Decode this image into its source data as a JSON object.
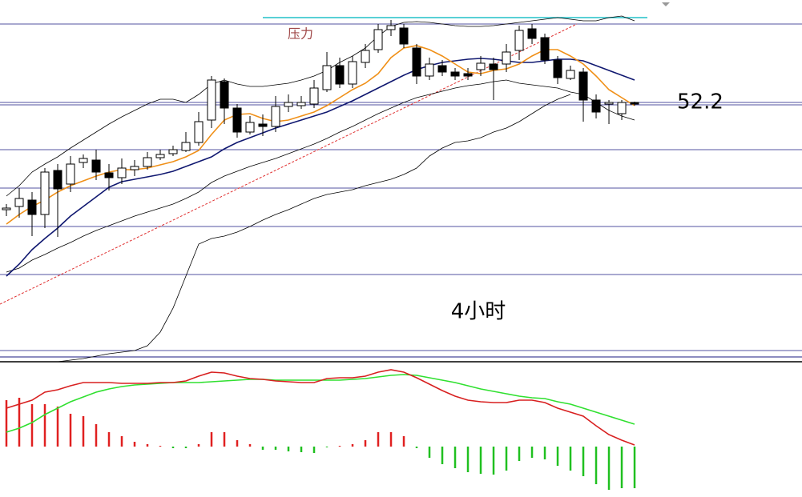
{
  "chart_data": [
    {
      "type": "candlestick",
      "xlim": [
        -0.5,
        62.06
      ],
      "ylim": [
        19.5,
        65
      ],
      "up_color": "#ffffff",
      "down_color": "#000000",
      "edge_color": "#000000",
      "open": [
        38.8,
        39.2,
        40.0,
        38.2,
        43.7,
        42.0,
        44.7,
        45.0,
        43.4,
        42.8,
        43.8,
        44.2,
        45.3,
        45.8,
        46.2,
        47.2,
        50.0,
        54.8,
        51.5,
        48.5,
        49.5,
        49.2,
        51.7,
        51.8,
        52.0,
        53.8,
        56.8,
        54.5,
        57.2,
        58.8,
        61.3,
        61.5,
        59.0,
        55.5,
        56.8,
        56.0,
        55.8,
        56.3,
        57.0,
        57.0,
        58.7,
        61.4,
        60.3,
        57.5,
        55.2,
        56.0,
        52.5,
        52.0,
        50.8,
        52.2
      ],
      "high": [
        39.5,
        41.5,
        41.0,
        44.0,
        44.5,
        45.5,
        45.7,
        46.3,
        44.5,
        45.2,
        45.0,
        46.0,
        46.3,
        46.8,
        48.5,
        51.0,
        55.5,
        55.2,
        52.0,
        50.5,
        50.7,
        53.0,
        53.2,
        53.0,
        55.0,
        58.5,
        57.8,
        58.0,
        59.5,
        62.0,
        62.5,
        62.0,
        59.5,
        57.8,
        57.5,
        56.5,
        56.5,
        58.0,
        57.8,
        59.5,
        61.8,
        62.0,
        60.8,
        58.0,
        56.8,
        56.5,
        53.2,
        52.5,
        52.5,
        52.3
      ],
      "low": [
        38.0,
        37.8,
        35.5,
        36.5,
        35.4,
        41.0,
        44.0,
        42.5,
        41.2,
        42.0,
        43.0,
        43.8,
        45.0,
        45.5,
        46.0,
        46.8,
        49.0,
        49.5,
        47.8,
        48.2,
        48.0,
        48.5,
        51.0,
        51.4,
        51.5,
        53.5,
        54.0,
        54.0,
        56.5,
        58.4,
        60.5,
        59.0,
        54.5,
        55.0,
        55.5,
        55.0,
        55.0,
        55.5,
        52.5,
        56.0,
        57.5,
        59.5,
        57.0,
        54.5,
        55.0,
        49.8,
        50.2,
        49.5,
        50.0,
        51.8
      ],
      "close": [
        39.0,
        40.2,
        38.2,
        43.5,
        41.4,
        44.5,
        45.2,
        43.5,
        42.8,
        44.0,
        44.2,
        45.3,
        45.7,
        46.3,
        47.2,
        49.8,
        55.0,
        51.5,
        48.5,
        49.7,
        49.2,
        51.7,
        52.2,
        52.2,
        54.0,
        56.8,
        54.5,
        57.3,
        58.7,
        61.3,
        61.8,
        59.5,
        55.5,
        57.0,
        56.0,
        55.5,
        55.5,
        57.1,
        56.3,
        58.5,
        61.2,
        60.2,
        57.5,
        55.3,
        56.2,
        52.5,
        51.0,
        52.2,
        52.2,
        52.0
      ],
      "lines": [
        {
          "color": "#000000",
          "width": 0.8,
          "values": [
            40.5,
            41.8,
            43.5,
            44.5,
            45.4,
            46.5,
            47.5,
            48.5,
            49.5,
            50.4,
            51.2,
            52.0,
            52.6,
            52.6,
            52.2,
            53.2,
            54.5,
            55.0,
            54.5,
            54.2,
            54.2,
            54.4,
            54.6,
            55.0,
            55.5,
            56.2,
            57.2,
            58.0,
            59.0,
            60.5,
            61.7,
            62.2,
            62.3,
            62.2,
            62.0,
            61.8,
            61.7,
            61.7,
            61.8,
            62.0,
            62.2,
            62.4,
            62.6,
            62.8,
            62.6,
            62.4,
            62.4,
            62.8,
            63.0,
            62.4
          ]
        },
        {
          "color": "#000000",
          "width": 0.8,
          "values": [
            31.0,
            31.5,
            32.5,
            33.2,
            34.0,
            34.7,
            35.5,
            36.2,
            36.8,
            37.4,
            38.0,
            38.5,
            39.0,
            39.5,
            40.2,
            41.0,
            42.2,
            43.0,
            43.6,
            44.2,
            44.7,
            45.2,
            45.8,
            46.4,
            47.0,
            47.7,
            48.5,
            49.2,
            50.0,
            50.8,
            51.5,
            52.2,
            52.8,
            53.2,
            53.6,
            54.0,
            54.3,
            54.5,
            54.8,
            55.0,
            54.6,
            54.4,
            54.2,
            54.0,
            53.5,
            53.2,
            52.2,
            51.2,
            50.5,
            50.0
          ]
        },
        {
          "color": "#000000",
          "width": 0.8,
          "values": [
            null,
            null,
            null,
            null,
            19.8,
            20.0,
            20.2,
            20.5,
            20.8,
            21.0,
            21.2,
            21.8,
            23.5,
            26.5,
            30.5,
            34.5,
            35.2,
            35.5,
            36.0,
            36.7,
            37.5,
            38.2,
            38.8,
            39.5,
            40.2,
            40.7,
            41.0,
            41.3,
            41.8,
            42.2,
            42.6,
            43.2,
            44.0,
            45.5,
            46.5,
            47.2,
            47.4,
            47.8,
            48.5,
            49.0,
            49.8,
            50.8,
            51.8,
            52.6,
            53.2,
            null,
            null,
            null,
            null,
            null
          ]
        },
        {
          "color": "#101870",
          "width": 1.6,
          "values": [
            30.5,
            32.0,
            33.8,
            35.2,
            36.5,
            38.0,
            39.2,
            40.4,
            41.6,
            42.3,
            42.6,
            42.9,
            43.2,
            43.6,
            44.2,
            44.8,
            45.4,
            46.4,
            47.2,
            47.8,
            48.4,
            49.0,
            49.5,
            50.0,
            50.5,
            51.0,
            51.7,
            52.4,
            53.2,
            54.0,
            54.8,
            55.6,
            56.3,
            56.8,
            57.2,
            57.4,
            57.6,
            57.7,
            57.6,
            57.4,
            57.2,
            57.2,
            57.4,
            57.6,
            57.6,
            57.4,
            56.8,
            56.2,
            55.6,
            55.0
          ]
        },
        {
          "color": "#f09018",
          "width": 1.6,
          "values": [
            37.0,
            38.2,
            39.2,
            40.0,
            41.0,
            41.8,
            42.4,
            43.0,
            43.5,
            43.8,
            43.8,
            44.0,
            44.4,
            44.8,
            45.4,
            46.2,
            48.2,
            50.0,
            50.7,
            50.8,
            50.2,
            49.8,
            50.0,
            50.5,
            51.0,
            51.8,
            52.8,
            53.8,
            54.6,
            55.8,
            57.8,
            59.0,
            59.3,
            58.8,
            58.0,
            57.0,
            56.0,
            55.8,
            56.2,
            56.4,
            57.0,
            58.0,
            58.8,
            58.8,
            58.0,
            57.0,
            55.5,
            53.8,
            52.8,
            51.8
          ]
        }
      ],
      "hlines": {
        "color": "#1a1a80",
        "values": [
          62.0,
          52.2,
          51.9,
          46.3,
          41.5,
          36.7,
          30.7,
          21.2
        ]
      },
      "trendline": {
        "color": "#e03030",
        "x": [
          -0.5,
          44.5
        ],
        "values": [
          27.0,
          62.0
        ]
      },
      "resistance": {
        "label": "压力",
        "color": "#20c0c8",
        "value": 62.8,
        "x": [
          20,
          50
        ]
      },
      "price_label": 52.2,
      "period_label": "4小时"
    },
    {
      "type": "macd",
      "xlim": [
        -0.5,
        62.06
      ],
      "ylim": [
        -3.15,
        5.15
      ],
      "up_color": "#e02020",
      "down_color": "#20c020",
      "values": [
        2.9,
        3.05,
        2.65,
        2.65,
        2.5,
        2.05,
        1.9,
        1.4,
        0.9,
        0.65,
        0.3,
        0.15,
        0.05,
        -0.1,
        -0.1,
        0.15,
        0.9,
        0.9,
        0.4,
        0.15,
        -0.2,
        -0.2,
        -0.3,
        -0.35,
        -0.4,
        -0.05,
        0.05,
        0.15,
        0.4,
        0.9,
        0.9,
        0.65,
        -0.1,
        -0.7,
        -1.1,
        -1.35,
        -1.6,
        -1.7,
        -1.75,
        -1.5,
        -0.9,
        -0.7,
        -0.8,
        -1.2,
        -1.5,
        -1.85,
        -2.35,
        -2.7,
        -2.6,
        -2.6
      ],
      "lines": [
        {
          "color": "#30e030",
          "width": 1.6,
          "values": [
            0.9,
            1.15,
            1.5,
            2.0,
            2.4,
            2.8,
            3.1,
            3.4,
            3.6,
            3.75,
            3.85,
            3.9,
            3.95,
            4.0,
            4.0,
            4.0,
            4.05,
            4.1,
            4.15,
            4.2,
            4.2,
            4.15,
            4.15,
            4.15,
            4.15,
            4.15,
            4.15,
            4.2,
            4.25,
            4.35,
            4.45,
            4.5,
            4.45,
            4.3,
            4.15,
            4.0,
            3.8,
            3.6,
            3.45,
            3.3,
            3.15,
            3.05,
            3.0,
            2.8,
            2.65,
            2.4,
            2.15,
            1.9,
            1.65,
            1.4
          ]
        },
        {
          "color": "#d82020",
          "width": 1.6,
          "values": [
            2.4,
            2.65,
            2.9,
            3.4,
            3.55,
            3.8,
            4.0,
            4.0,
            4.0,
            3.95,
            3.95,
            3.95,
            4.0,
            4.0,
            4.1,
            4.4,
            4.65,
            4.6,
            4.4,
            4.25,
            4.2,
            4.1,
            4.05,
            4.0,
            4.0,
            4.25,
            4.3,
            4.3,
            4.4,
            4.65,
            4.8,
            4.65,
            4.3,
            3.9,
            3.5,
            3.15,
            2.9,
            2.8,
            2.75,
            2.75,
            2.9,
            2.9,
            2.75,
            2.4,
            2.15,
            1.9,
            1.3,
            0.75,
            0.4,
            0.1
          ]
        }
      ]
    }
  ]
}
